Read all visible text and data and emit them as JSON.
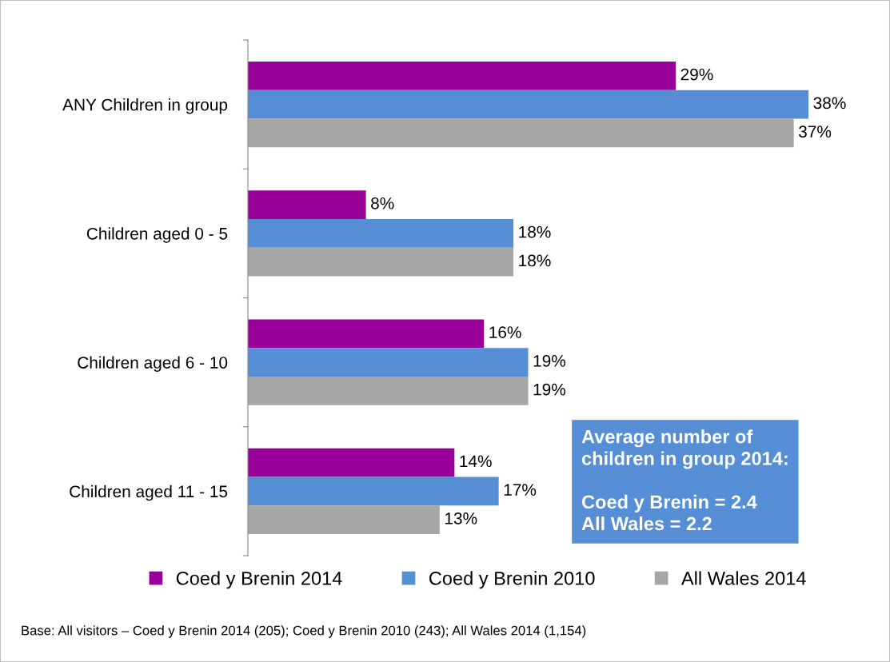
{
  "chart_data": {
    "type": "bar",
    "orientation": "horizontal",
    "categories": [
      "ANY Children in group",
      "Children aged 0 - 5",
      "Children aged 6 - 10",
      "Children aged 11 - 15"
    ],
    "series": [
      {
        "name": "Coed y Brenin 2014",
        "color": "#990099",
        "values": [
          29,
          8,
          16,
          14
        ],
        "value_labels": [
          "29%",
          "8%",
          "16%",
          "14%"
        ]
      },
      {
        "name": "Coed y Brenin 2010",
        "color": "#558ed5",
        "values": [
          38,
          18,
          19,
          17
        ],
        "value_labels": [
          "38%",
          "18%",
          "19%",
          "17%"
        ]
      },
      {
        "name": "All Wales 2014",
        "color": "#a6a6a6",
        "values": [
          37,
          18,
          19,
          13
        ],
        "value_labels": [
          "37%",
          "18%",
          "19%",
          "13%"
        ]
      }
    ],
    "legend": "bottom",
    "marker": "square",
    "grid": false,
    "annotations": [
      "Average number of\nchildren in group 2014:\n\nCoed y Brenin = 2.4\nAll Wales = 2.2",
      "Base: All visitors – Coed y Brenin 2014 (205); Coed y Brenin 2010 (243); All Wales 2014 (1,154)"
    ]
  }
}
